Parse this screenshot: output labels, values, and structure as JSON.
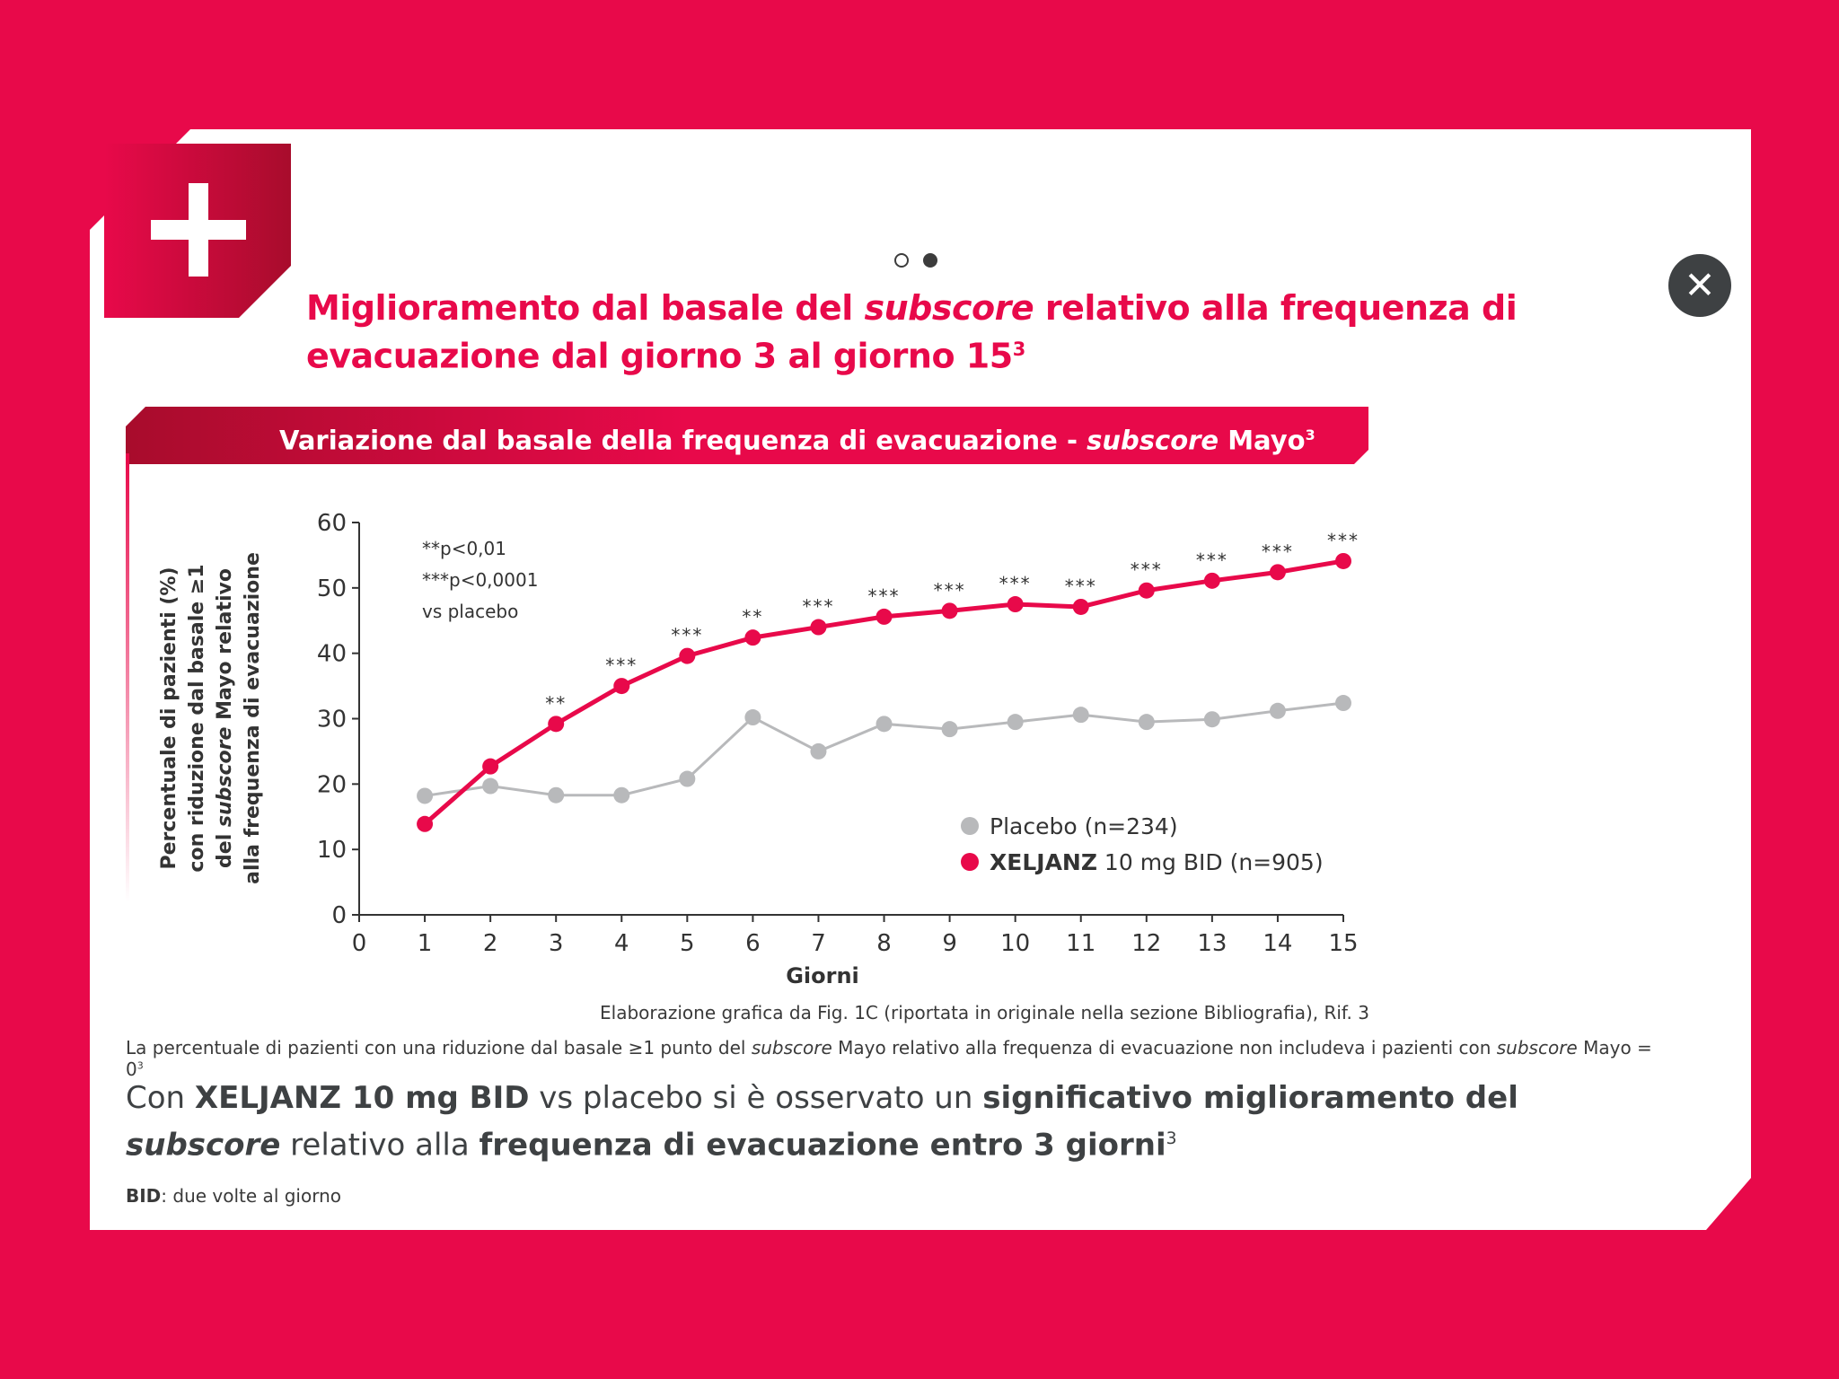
{
  "nav": {
    "dot_1": "",
    "dot_2": "",
    "close_icon": "close-icon"
  },
  "title": {
    "part1": "Miglioramento dal basale del ",
    "italic": "subscore",
    "part2": " relativo alla frequenza di evacuazione dal giorno 3 al giorno 15",
    "sup": "3"
  },
  "subtitle": {
    "part1": "Variazione dal basale della frequenza di evacuazione - ",
    "italic": "subscore",
    "part2": " Mayo",
    "sup": "3"
  },
  "chart_data": {
    "type": "line",
    "xlabel": "Giorni",
    "ylabel_lines": [
      "Percentuale di pazienti (%)",
      "con riduzione dal basale ≥1",
      "del subscore Mayo relativo",
      "alla frequenza di evacuazione"
    ],
    "ylabel_italic": "subscore",
    "xlim": [
      0,
      15
    ],
    "ylim": [
      0,
      60
    ],
    "x_ticks": [
      0,
      1,
      2,
      3,
      4,
      5,
      6,
      7,
      8,
      9,
      10,
      11,
      12,
      13,
      14,
      15
    ],
    "y_ticks": [
      0,
      10,
      20,
      30,
      40,
      50,
      60
    ],
    "x": [
      1,
      2,
      3,
      4,
      5,
      6,
      7,
      8,
      9,
      10,
      11,
      12,
      13,
      14,
      15
    ],
    "series": [
      {
        "name": "Placebo (n=234)",
        "color": "#b8b9bb",
        "values": [
          18.2,
          19.7,
          18.3,
          18.3,
          20.8,
          30.2,
          25.0,
          29.2,
          28.4,
          29.5,
          30.6,
          29.5,
          29.9,
          31.2,
          32.4
        ]
      },
      {
        "name_bold": "XELJANZ",
        "name_rest": " 10 mg BID (n=905)",
        "color": "#e8094a",
        "values": [
          13.9,
          22.7,
          29.2,
          35.0,
          39.6,
          42.4,
          44.0,
          45.6,
          46.5,
          47.5,
          47.1,
          49.6,
          51.1,
          52.4,
          54.1
        ]
      }
    ],
    "significance": [
      "",
      "",
      "**",
      "***",
      "***",
      "**",
      "***",
      "***",
      "***",
      "***",
      "***",
      "***",
      "***",
      "***",
      "***"
    ],
    "annotations": [
      "**p<0,01",
      "***p<0,0001",
      "vs placebo"
    ],
    "grid": false,
    "legend": "bottom-right"
  },
  "source": "Elaborazione grafica da Fig. 1C (riportata in originale nella sezione Bibliografia), Rif. 3",
  "footnote": {
    "part1": "La percentuale di pazienti con una riduzione dal basale ≥1 punto del ",
    "italic1": "subscore",
    "part2": " Mayo relativo alla frequenza di evacuazione non includeva i pazienti con ",
    "italic2": "subscore",
    "part3": " Mayo = 0",
    "sup": "3"
  },
  "conclusion": {
    "t1": "Con ",
    "b1": "XELJANZ 10 mg BID",
    "t2": " vs placebo si è osservato un ",
    "b2": "significativo miglioramento del ",
    "bi": "subscore",
    "t3": " relativo alla ",
    "b3": "frequenza di evacuazione entro 3 giorni",
    "sup": "3"
  },
  "abbr": {
    "term": "BID",
    "def": ": due volte al giorno"
  }
}
